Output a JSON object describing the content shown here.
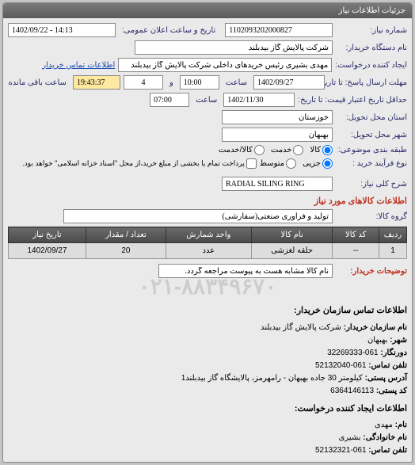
{
  "header": {
    "title": "جزئیات اطلاعات نیاز"
  },
  "form": {
    "need_no_label": "شماره نیاز:",
    "need_no": "1102093202000827",
    "announce_label": "تاریخ و ساعت اعلان عمومی:",
    "announce_value": "1402/09/22 - 14:13",
    "buyer_org_label": "نام دستگاه خریدار:",
    "buyer_org": "شرکت پالایش گاز بیدبلند",
    "creator_label": "ایجاد کننده درخواست:",
    "creator": "مهدی بشیری رئیس خریدهای داخلی شرکت پالایش گاز بیدبلند",
    "buyer_contact_link": "اطلاعات تماس خریدار",
    "deadline_label": "مهلت ارسال پاسخ: تا تاریخ:",
    "deadline_date": "1402/09/27",
    "time_label": "ساعت",
    "deadline_time": "10:00",
    "and_label": "و",
    "days_remain": "4",
    "remain_label": "ساعت باقی مانده",
    "remain_time": "19:43:37",
    "validity_label": "حداقل تاریخ اعتبار قیمت: تا تاریخ:",
    "validity_date": "1402/11/30",
    "validity_time": "07:00",
    "province_label": "استان محل تحویل:",
    "province": "خوزستان",
    "city_label": "شهر محل تحویل:",
    "city": "بهبهان",
    "classify_label": "طبقه بندی موضوعی:",
    "opt_kala": "کالا",
    "opt_khadamat": "خدمت",
    "opt_kala_khadamat": "کالا/خدمت",
    "process_label": "نوع فرآیند خرید :",
    "opt_jozi": "جزیی",
    "opt_motevaset": "متوسط",
    "process_note": "پرداخت تمام یا بخشی از مبلغ خرید،از محل \"اسناد خزانه اسلامی\" خواهد بود.",
    "desc_label": "شرح کلی نیاز:",
    "desc_value": "RADIAL SILING RING",
    "items_title": "اطلاعات کالاهای مورد نیاز",
    "group_label": "گروه کالا:",
    "group_value": "تولید و فرآوری صنعتی(سفارشی)",
    "buyer_notes_label": "توضیحات خریدار:",
    "buyer_notes": "نام کالا مشابه هست به پیوست مراجعه گردد."
  },
  "table": {
    "headers": {
      "row": "ردیف",
      "code": "کد کالا",
      "name": "نام کالا",
      "unit": "واحد شمارش",
      "qty": "تعداد / مقدار",
      "date": "تاریخ نیاز"
    },
    "rows": [
      {
        "row": "1",
        "code": "--",
        "name": "حلقه لغزشی",
        "unit": "عدد",
        "qty": "20",
        "date": "1402/09/27"
      }
    ]
  },
  "contact": {
    "title": "اطلاعات تماس سازمان خریدار:",
    "org_label": "نام سازمان خریدار:",
    "org": "شرکت پالایش گاز بیدبلند",
    "city_label": "شهر:",
    "city": "بهبهان",
    "switch_label": "دورنگار:",
    "switch": "061-32269333",
    "fax_label": "تلفن تماس:",
    "fax": "061-52132040",
    "address_label": "آدرس پستی:",
    "address": "کیلومتر 30 جاده بهبهان - رامهرمز، پالایشگاه گاز بیدبلند1",
    "postal_label": "کد پستی:",
    "postal": "6364146113",
    "creator_title": "اطلاعات ایجاد کننده درخواست:",
    "name_label": "نام:",
    "name": "مهدی",
    "lname_label": "نام خانوادگی:",
    "lname": "بشیری",
    "phone_label": "تلفن تماس:",
    "phone": "061-52132321"
  },
  "watermark": "۰۲۱-۸۸۳۴۹۶۷۰"
}
